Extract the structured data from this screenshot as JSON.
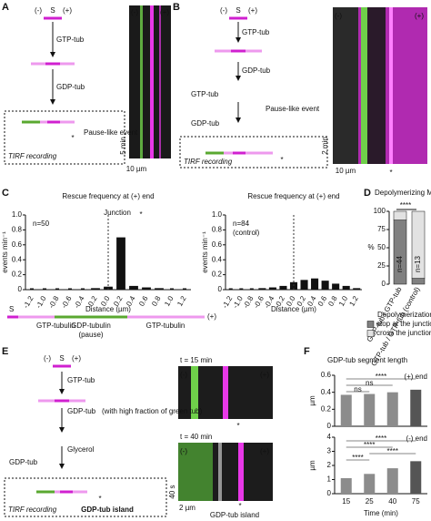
{
  "symbols": {
    "minus": "(-)",
    "plus": "(+)",
    "seed": "S",
    "star": "*"
  },
  "panel_a": {
    "label": "A",
    "gtp": "GTP-tub",
    "gdp": "GDP-tub",
    "pause": "Pause-like event",
    "tirf": "TIRF recording",
    "time_bar": "5 min",
    "scale_bar": "10 µm"
  },
  "panel_b": {
    "label": "B",
    "gtp": "GTP-tub",
    "gdp": "GDP-tub",
    "pause": "Pause-like event",
    "tirf": "TIRF recording",
    "time_bar": "2 min",
    "scale_bar": "10 µm"
  },
  "panel_c": {
    "label": "C",
    "charts": [
      {
        "title": "Rescue frequency at (+) end",
        "n": "n=50",
        "junction": "Junction",
        "ylabel": "events min⁻¹",
        "xlabel": "Distance (µm)",
        "ylim": [
          0,
          1
        ],
        "yticks": [
          0,
          0.2,
          0.4,
          0.6,
          0.8,
          {
            "value": 1,
            "label": "1.0"
          }
        ],
        "categories": [
          "-1.2",
          "-1.0",
          "-0.8",
          "-0.6",
          "-0.4",
          "-0.2",
          "0.0",
          "0.2",
          "0.4",
          "0.6",
          "0.8",
          "1.0",
          "1.2"
        ],
        "values": [
          0,
          0,
          0,
          0,
          0,
          0.02,
          0.04,
          0.7,
          0.05,
          0.03,
          0.02,
          0,
          0
        ],
        "color": "#111111"
      },
      {
        "title": "Rescue frequency at (+) end",
        "n": "n=84",
        "note": "(control)",
        "ylabel": "events min⁻¹",
        "xlabel": "Distance (µm)",
        "ylim": [
          0,
          1
        ],
        "yticks": [
          0,
          0.2,
          0.4,
          0.6,
          0.8,
          {
            "value": 1,
            "label": "1.0"
          }
        ],
        "categories": [
          "-1.2",
          "-1.0",
          "-0.8",
          "-0.6",
          "-0.4",
          "-0.2",
          "0.0",
          "0.2",
          "0.4",
          "0.6",
          "0.8",
          "1.0",
          "1.2"
        ],
        "values": [
          0,
          0,
          0,
          0.02,
          0.03,
          0.05,
          0.1,
          0.13,
          0.15,
          0.12,
          0.08,
          0.05,
          0.02
        ],
        "color": "#111111"
      }
    ],
    "strip": {
      "gtp_left": "GTP-tubulin",
      "gdp": "GDP-tubulin",
      "pause": "(pause)",
      "gtp_right": "GTP-tubulin"
    }
  },
  "panel_d": {
    "label": "D",
    "title": "Depolymerizing MTs at (+) end",
    "ylabel": "%",
    "significance": "****",
    "ylim": [
      0,
      100
    ],
    "yticks": [
      0,
      25,
      50,
      75,
      100
    ],
    "categories": [
      "GDP-tub / GTP-tub",
      "GTP-tub / GTP-tub (control)"
    ],
    "n_labels": [
      "n=44",
      "n=13"
    ],
    "series": [
      {
        "name": "stop at the junction",
        "color": "#808080",
        "values": [
          88,
          8
        ]
      },
      {
        "name": "cross the junction",
        "color": "#e2e2e2",
        "values": [
          12,
          92
        ]
      }
    ],
    "legend_title": "Depolymerization:"
  },
  "panel_e": {
    "label": "E",
    "gtp": "GTP-tub",
    "gdp": "GDP-tub",
    "gdp_note": "(with high fraction of green tub)",
    "glycerol": "Glycerol",
    "gdp2": "GDP-tub",
    "tirf": "TIRF recording",
    "island": "GDP-tub island",
    "kymo_island": "GDP-tub island",
    "t1": "t = 15 min",
    "t2": "t = 40 min",
    "time_bar": "40 s",
    "scale_bar": "2 µm"
  },
  "panel_f": {
    "label": "F",
    "title": "GDP-tub segment length",
    "xlabel": "Time (min)",
    "charts": [
      {
        "end": "(+) end",
        "ylabel": "µm",
        "ylim": [
          0,
          0.6
        ],
        "yticks": [
          0,
          0.2,
          0.4,
          0.6
        ],
        "categories": [
          "15",
          "25",
          "40",
          "75"
        ],
        "values": [
          0.37,
          0.38,
          0.4,
          0.43
        ],
        "color": "#8c8c8c",
        "significance": [
          "****",
          "ns",
          "ns"
        ]
      },
      {
        "end": "(-) end",
        "ylabel": "µm",
        "ylim": [
          0,
          4
        ],
        "yticks": [
          0,
          1,
          2,
          3,
          4
        ],
        "categories": [
          "15",
          "25",
          "40",
          "75"
        ],
        "values": [
          1.1,
          1.4,
          1.8,
          2.3
        ],
        "color": "#8c8c8c",
        "significance": [
          "****",
          "****",
          "****",
          "****"
        ]
      }
    ]
  }
}
